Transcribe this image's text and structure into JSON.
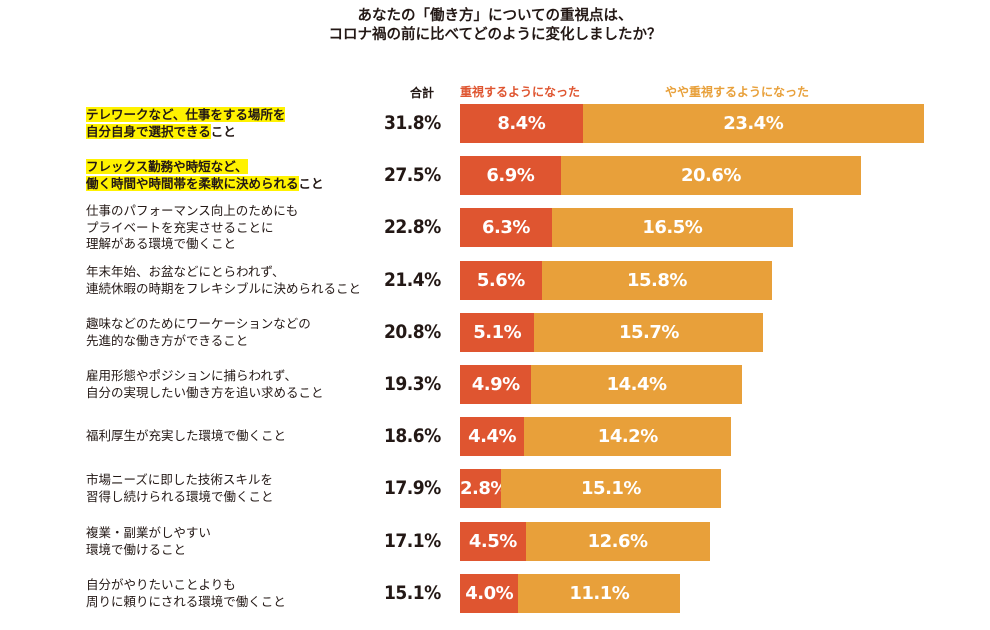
{
  "chart_data": {
    "type": "bar",
    "orientation": "horizontal",
    "stacked": true,
    "title": [
      "あなたの「働き方」についての重視点は、",
      "コロナ禍の前に比べてどのように変化しましたか？"
    ],
    "total_header": "合計",
    "series": [
      {
        "name": "重視するようになった",
        "color": "#df5530",
        "values": [
          8.4,
          6.9,
          6.3,
          5.6,
          5.1,
          4.9,
          4.4,
          2.8,
          4.5,
          4.0
        ],
        "labels": [
          "8.4%",
          "6.9%",
          "6.3%",
          "5.6%",
          "5.1%",
          "4.9%",
          "4.4%",
          "2.8%",
          "4.5%",
          "4.0%"
        ]
      },
      {
        "name": "やや重視するようになった",
        "color": "#e8a03a",
        "values": [
          23.4,
          20.6,
          16.5,
          15.8,
          15.7,
          14.4,
          14.2,
          15.1,
          12.6,
          11.1
        ],
        "labels": [
          "23.4%",
          "20.6%",
          "16.5%",
          "15.8%",
          "15.7%",
          "14.4%",
          "14.2%",
          "15.1%",
          "12.6%",
          "11.1%"
        ]
      }
    ],
    "totals": [
      "31.8%",
      "27.5%",
      "22.8%",
      "21.4%",
      "20.8%",
      "19.3%",
      "18.6%",
      "17.9%",
      "17.1%",
      "15.1%"
    ],
    "categories": [
      {
        "lines": [
          {
            "hl": "テレワークなど、仕事をする場所を",
            "rest": ""
          },
          {
            "hl": "自分自身で選択できる",
            "rest": "こと"
          }
        ]
      },
      {
        "lines": [
          {
            "hl": "フレックス勤務や時短など、",
            "rest": ""
          },
          {
            "hl": "働く時間や時間帯を柔軟に決められる",
            "rest": "こと"
          }
        ]
      },
      {
        "lines": [
          {
            "hl": "",
            "rest": "仕事のパフォーマンス向上のためにも"
          },
          {
            "hl": "",
            "rest": "プライベートを充実させることに"
          },
          {
            "hl": "",
            "rest": "理解がある環境で働くこと"
          }
        ]
      },
      {
        "lines": [
          {
            "hl": "",
            "rest": "年末年始、お盆などにとらわれず、"
          },
          {
            "hl": "",
            "rest": "連続休暇の時期をフレキシブルに決められること"
          }
        ]
      },
      {
        "lines": [
          {
            "hl": "",
            "rest": "趣味などのためにワーケーションなどの"
          },
          {
            "hl": "",
            "rest": "先進的な働き方ができること"
          }
        ]
      },
      {
        "lines": [
          {
            "hl": "",
            "rest": "雇用形態やポジションに捕らわれず、"
          },
          {
            "hl": "",
            "rest": "自分の実現したい働き方を追い求めること"
          }
        ]
      },
      {
        "lines": [
          {
            "hl": "",
            "rest": "福利厚生が充実した環境で働くこと"
          }
        ]
      },
      {
        "lines": [
          {
            "hl": "",
            "rest": "市場ニーズに即した技術スキルを"
          },
          {
            "hl": "",
            "rest": "習得し続けられる環境で働くこと"
          }
        ]
      },
      {
        "lines": [
          {
            "hl": "",
            "rest": "複業・副業がしやすい"
          },
          {
            "hl": "",
            "rest": "環境で働けること"
          }
        ]
      },
      {
        "lines": [
          {
            "hl": "",
            "rest": "自分がやりたいことよりも"
          },
          {
            "hl": "",
            "rest": "周りに頼りにされる環境で働くこと"
          }
        ]
      }
    ],
    "xlim": [
      0,
      32
    ]
  }
}
